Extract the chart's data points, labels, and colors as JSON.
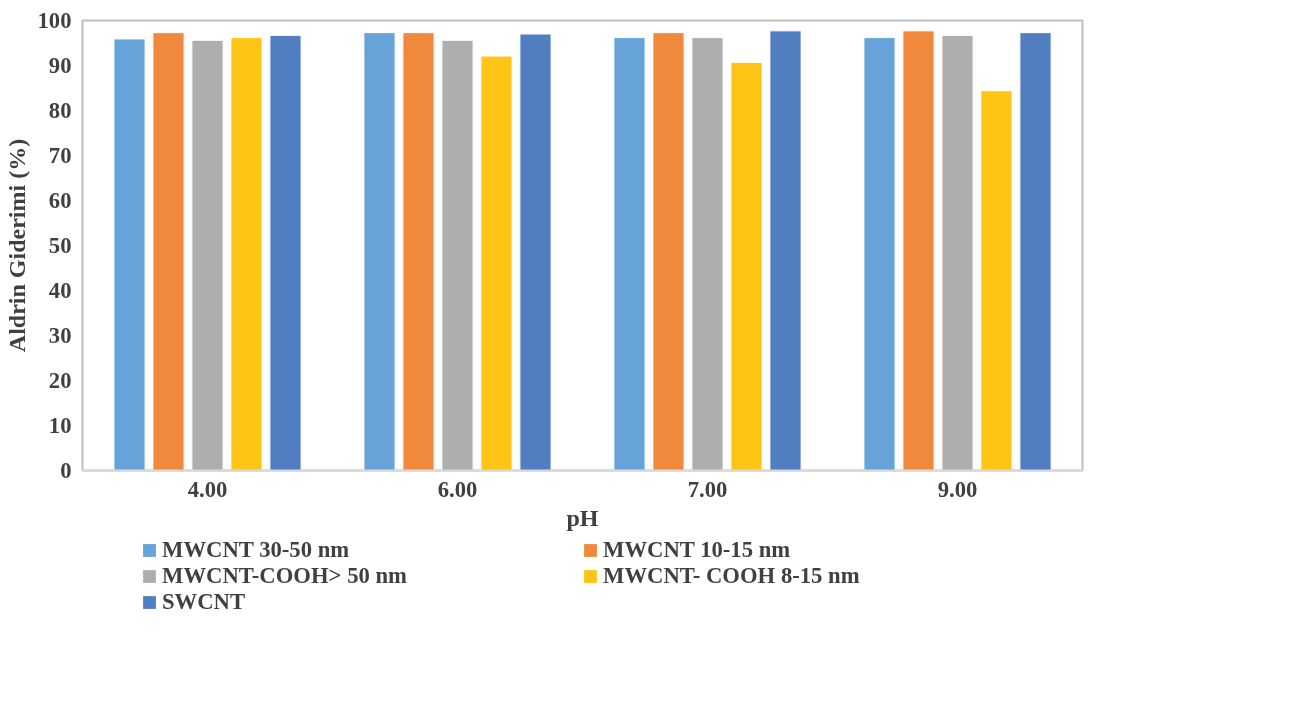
{
  "chart_data": {
    "type": "bar",
    "xlabel": "pH",
    "ylabel": "Aldrin Giderimi (%)",
    "categories": [
      "4.00",
      "6.00",
      "7.00",
      "9.00"
    ],
    "series": [
      {
        "name": "MWCNT 30-50 nm",
        "color": "#66a3d9",
        "values": [
          95.9,
          97.3,
          96.2,
          96.2
        ]
      },
      {
        "name": "MWCNT 10-15 nm",
        "color": "#f0893b",
        "values": [
          97.3,
          97.3,
          97.3,
          97.7
        ]
      },
      {
        "name": "MWCNT-COOH> 50 nm",
        "color": "#adaeae",
        "values": [
          95.6,
          95.6,
          96.2,
          96.7
        ]
      },
      {
        "name": "MWCNT- COOH 8-15 nm",
        "color": "#ffc516",
        "values": [
          96.2,
          92.1,
          90.7,
          84.4
        ]
      },
      {
        "name": "SWCNT",
        "color": "#517dc1",
        "values": [
          96.7,
          97.0,
          97.7,
          97.3
        ]
      }
    ],
    "ylim": [
      0,
      100
    ],
    "yticks": [
      0,
      10,
      20,
      30,
      40,
      50,
      60,
      70,
      80,
      90,
      100
    ],
    "grid": false,
    "legend": "bottom"
  }
}
